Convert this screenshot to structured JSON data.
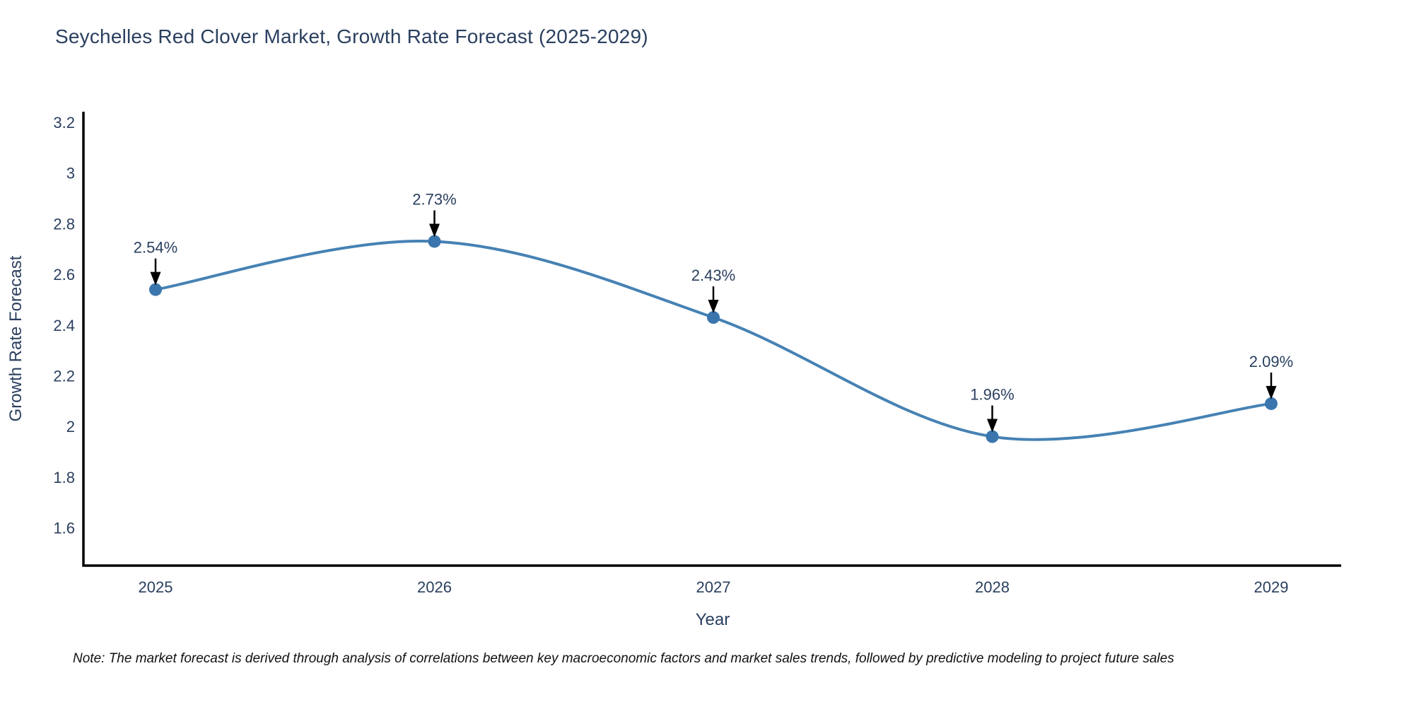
{
  "note": {
    "text": "Note: The market forecast is derived through analysis of correlations between key macroeconomic factors and market sales trends, followed by predictive modeling to project future sales"
  },
  "chart_data": {
    "type": "line",
    "title": "Seychelles Red Clover Market, Growth Rate Forecast (2025-2029)",
    "xlabel": "Year",
    "ylabel": "Growth Rate Forecast",
    "categories": [
      "2025",
      "2026",
      "2027",
      "2028",
      "2029"
    ],
    "series": [
      {
        "name": "Growth Rate Forecast",
        "values": [
          2.54,
          2.73,
          2.43,
          1.96,
          2.09
        ],
        "point_labels": [
          "2.54%",
          "2.73%",
          "2.43%",
          "1.96%",
          "2.09%"
        ]
      }
    ],
    "ytick_values": [
      3.2,
      3.0,
      2.8,
      2.6,
      2.4,
      2.2,
      2.0,
      1.8,
      1.6
    ],
    "ytick_labels": [
      "3.2",
      "3",
      "2.8",
      "2.6",
      "2.4",
      "2.2",
      "2",
      "1.8",
      "1.6"
    ],
    "ylim": [
      1.45,
      3.24
    ],
    "line_shape": "spline",
    "markers": true,
    "grid": false,
    "legend_position": "none",
    "colors": {
      "line": "#4682b4",
      "marker_fill": "#3a76ad",
      "axis_line": "#000000",
      "tick_text": "#2a3f5f",
      "axis_title_text": "#2a3f5f",
      "annotation_text": "#2a3f5f",
      "annotation_arrow": "#000000",
      "background": "#ffffff"
    }
  }
}
